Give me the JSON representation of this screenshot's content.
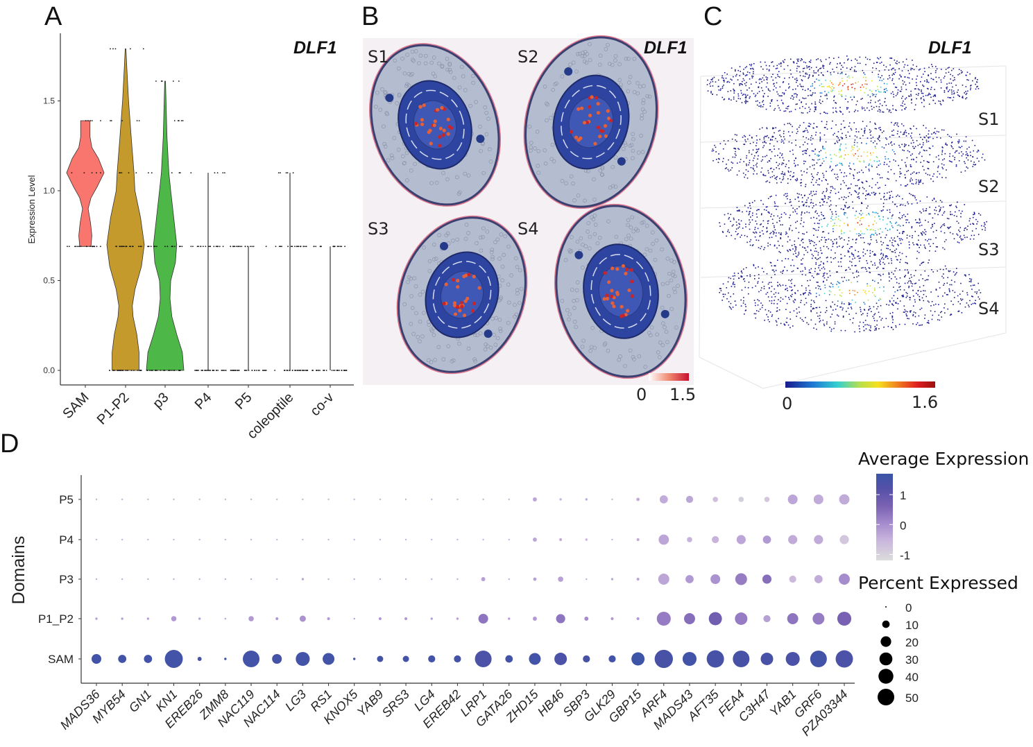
{
  "panels": {
    "a": "A",
    "b": "B",
    "c": "C",
    "d": "D"
  },
  "chart_data": [
    {
      "type": "violin",
      "panel": "A",
      "title": "DLF1",
      "ylabel": "Expression Level",
      "xlabel": "",
      "ylim": [
        -0.1,
        1.85
      ],
      "yticks": [
        "0.0",
        "0.5",
        "1.0",
        "1.5"
      ],
      "ytick_values": [
        0,
        0.5,
        1.0,
        1.5
      ],
      "grid": false,
      "categories": [
        "SAM",
        "P1-P2",
        "p3",
        "P4",
        "P5",
        "coleoptile",
        "co-v"
      ],
      "colors": [
        "#f8766d",
        "#c49a2c",
        "#4db848",
        "#333333",
        "#333333",
        "#333333",
        "#333333"
      ],
      "max_values": [
        1.39,
        1.79,
        1.61,
        1.1,
        0.69,
        1.1,
        0.69
      ],
      "min_values": [
        0.69,
        0,
        0,
        0,
        0,
        0,
        0
      ],
      "point_levels": [
        [
          0.69,
          1.1,
          1.39
        ],
        [
          0,
          0.69,
          1.1,
          1.39,
          1.79
        ],
        [
          0,
          0.69,
          1.1,
          1.39,
          1.61
        ],
        [
          0,
          0.69,
          1.1
        ],
        [
          0,
          0.69
        ],
        [
          0,
          0.69,
          1.1
        ],
        [
          0,
          0.69
        ]
      ],
      "density": [
        [
          [
            0.69,
            0.3
          ],
          [
            0.75,
            0.35
          ],
          [
            0.82,
            0.28
          ],
          [
            0.9,
            0.15
          ],
          [
            0.96,
            0.3
          ],
          [
            1.02,
            0.62
          ],
          [
            1.1,
            1.0
          ],
          [
            1.18,
            0.7
          ],
          [
            1.24,
            0.35
          ],
          [
            1.3,
            0.25
          ],
          [
            1.39,
            0.25
          ]
        ],
        [
          [
            0,
            0.72
          ],
          [
            0.1,
            0.72
          ],
          [
            0.2,
            0.6
          ],
          [
            0.3,
            0.4
          ],
          [
            0.36,
            0.36
          ],
          [
            0.45,
            0.5
          ],
          [
            0.58,
            0.85
          ],
          [
            0.7,
            1.0
          ],
          [
            0.85,
            0.8
          ],
          [
            1.0,
            0.5
          ],
          [
            1.1,
            0.45
          ],
          [
            1.3,
            0.3
          ],
          [
            1.5,
            0.16
          ],
          [
            1.7,
            0.06
          ],
          [
            1.79,
            0.02
          ]
        ],
        [
          [
            0,
            1.0
          ],
          [
            0.1,
            0.92
          ],
          [
            0.2,
            0.62
          ],
          [
            0.3,
            0.36
          ],
          [
            0.4,
            0.26
          ],
          [
            0.5,
            0.3
          ],
          [
            0.6,
            0.55
          ],
          [
            0.7,
            0.62
          ],
          [
            0.85,
            0.46
          ],
          [
            1.0,
            0.3
          ],
          [
            1.1,
            0.2
          ],
          [
            1.3,
            0.1
          ],
          [
            1.5,
            0.05
          ],
          [
            1.61,
            0.02
          ]
        ],
        [],
        [],
        [],
        []
      ]
    },
    {
      "type": "spatial-image",
      "panel": "B",
      "title": "DLF1",
      "sections": [
        "S1",
        "S2",
        "S3",
        "S4"
      ],
      "colorbar": {
        "min_label": "0",
        "max_label": "1.5",
        "colors": [
          "#ffffff",
          "#f08a70",
          "#c8102e"
        ]
      }
    },
    {
      "type": "scatter3d",
      "panel": "C",
      "title": "DLF1",
      "layers": [
        "S1",
        "S2",
        "S3",
        "S4"
      ],
      "colorbar": {
        "min_label": "0",
        "max_label": "1.6",
        "colors": [
          "#1a1a8c",
          "#1e78d2",
          "#35d0d0",
          "#b8e04a",
          "#f5e020",
          "#f08020",
          "#e02020",
          "#9a1010"
        ]
      }
    },
    {
      "type": "dotplot",
      "panel": "D",
      "xlabel": "",
      "ylabel": "Domains",
      "domains": [
        "P5",
        "P4",
        "P3",
        "P1_P2",
        "SAM"
      ],
      "genes": [
        "MADS36",
        "MYB54",
        "GN1",
        "KN1",
        "EREB26",
        "ZMM8",
        "NAC119",
        "NAC114",
        "LG3",
        "RS1",
        "KNOX5",
        "YAB9",
        "SRS3",
        "LG4",
        "EREB42",
        "LRP1",
        "GATA26",
        "ZHD15",
        "HB46",
        "SBP3",
        "GLK29",
        "GBP15",
        "ARF4",
        "MADS43",
        "AFT35",
        "FEA4",
        "C3H47",
        "YAB1",
        "GRF6",
        "PZA03344"
      ],
      "percent_expressed": [
        [
          0.5,
          0.5,
          0.5,
          0.5,
          0.5,
          0.5,
          0.5,
          0.5,
          0.5,
          0.5,
          0.5,
          0.5,
          0.5,
          0.5,
          0.5,
          0.5,
          0.5,
          3,
          1,
          1,
          0.5,
          2,
          12,
          9,
          5,
          5,
          5,
          17,
          17,
          19
        ],
        [
          0.5,
          0.5,
          0.5,
          0.5,
          0.5,
          0.5,
          0.5,
          0.5,
          0.5,
          0.5,
          0.5,
          0.5,
          0.5,
          0.5,
          0.5,
          0.5,
          0.5,
          3,
          1.5,
          1,
          0.5,
          1.5,
          19,
          5,
          9,
          15,
          12,
          15,
          15,
          15
        ],
        [
          0.5,
          0.5,
          0.5,
          0.5,
          0.5,
          0.5,
          0.5,
          0.5,
          1,
          0.5,
          0.5,
          0.5,
          0.5,
          0.5,
          0.5,
          3,
          0.5,
          2,
          5,
          0.5,
          1,
          1.5,
          22,
          12,
          17,
          25,
          15,
          9,
          12,
          22
        ],
        [
          1,
          1,
          1,
          5,
          1,
          0.5,
          5,
          1.5,
          7,
          1.5,
          0.5,
          1.5,
          1.5,
          1,
          1,
          17,
          1,
          3,
          15,
          3,
          1.5,
          1.5,
          35,
          22,
          31,
          28,
          9,
          22,
          25,
          35
        ],
        [
          17,
          12,
          12,
          58,
          3,
          1,
          50,
          17,
          35,
          25,
          1,
          7,
          7,
          9,
          9,
          50,
          10,
          25,
          28,
          9,
          9,
          31,
          60,
          35,
          54,
          50,
          28,
          35,
          50,
          54
        ]
      ],
      "average_expression": [
        [
          -0.6,
          -0.6,
          -0.6,
          -0.6,
          -0.6,
          -0.6,
          -0.6,
          -0.6,
          -0.6,
          -0.6,
          -0.6,
          -0.6,
          -0.6,
          -0.6,
          -0.6,
          -0.6,
          -0.6,
          -0.4,
          -0.6,
          -0.5,
          -0.6,
          -0.5,
          -0.5,
          -0.4,
          -0.8,
          -1.0,
          -0.9,
          -0.4,
          -0.5,
          -0.5
        ],
        [
          -0.6,
          -0.6,
          -0.6,
          -0.6,
          -0.6,
          -0.6,
          -0.6,
          -0.6,
          -0.6,
          -0.6,
          -0.6,
          -0.6,
          -0.6,
          -0.6,
          -0.6,
          -0.6,
          -0.6,
          -0.4,
          -0.5,
          -0.6,
          -0.6,
          -0.5,
          -0.4,
          -0.6,
          -0.6,
          -0.4,
          -0.2,
          -0.5,
          -0.5,
          -0.9
        ],
        [
          -0.5,
          -0.5,
          -0.5,
          -0.5,
          -0.5,
          -0.5,
          -0.5,
          -0.5,
          -0.4,
          -0.5,
          -0.5,
          -0.5,
          -0.5,
          -0.5,
          -0.5,
          -0.3,
          -0.5,
          -0.3,
          -0.3,
          -0.5,
          -0.4,
          -0.4,
          -0.4,
          -0.2,
          -0.1,
          0.2,
          0.4,
          -0.7,
          -0.5,
          0.0
        ],
        [
          -0.3,
          -0.3,
          -0.3,
          -0.2,
          -0.3,
          -0.3,
          -0.2,
          -0.2,
          -0.1,
          -0.2,
          -0.3,
          -0.2,
          -0.2,
          -0.3,
          -0.3,
          0.3,
          -0.3,
          -0.2,
          0.3,
          0.0,
          -0.2,
          -0.2,
          0.2,
          0.4,
          0.7,
          0.2,
          -0.3,
          0.3,
          0.2,
          0.6
        ],
        [
          1.5,
          1.5,
          1.5,
          1.5,
          1.5,
          1.5,
          1.5,
          1.5,
          1.5,
          1.5,
          1.5,
          1.5,
          1.5,
          1.5,
          1.5,
          1.3,
          1.5,
          1.5,
          1.3,
          1.4,
          1.5,
          1.6,
          1.4,
          1.5,
          1.4,
          1.4,
          1.4,
          1.3,
          1.5,
          1.3
        ]
      ],
      "legend": {
        "color_title": "Average Expression",
        "color_ticks": [
          "1",
          "0",
          "-1"
        ],
        "color_tick_values": [
          1,
          0,
          -1
        ],
        "color_range": [
          -1.2,
          1.7
        ],
        "colors": [
          "#dcdcdc",
          "#c8b4dc",
          "#a88fcf",
          "#7c63b3",
          "#5450a8",
          "#3a55a6"
        ],
        "size_title": "Percent Expressed",
        "size_ticks": [
          "0",
          "10",
          "20",
          "30",
          "40",
          "50"
        ],
        "size_values": [
          0,
          10,
          20,
          30,
          40,
          50
        ],
        "placement": "right"
      }
    }
  ]
}
